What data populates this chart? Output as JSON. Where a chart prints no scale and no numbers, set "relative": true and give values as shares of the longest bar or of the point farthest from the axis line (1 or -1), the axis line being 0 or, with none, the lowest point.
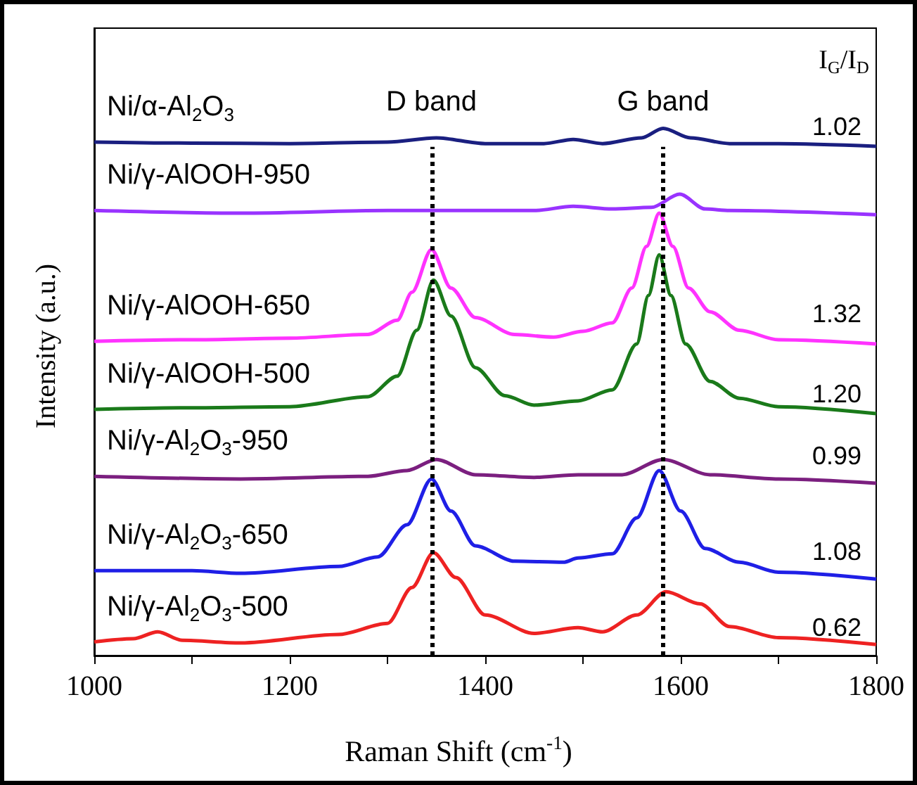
{
  "chart_data": {
    "type": "line",
    "relative": true,
    "xlabel": "Raman Shift (cm$^{-1}$)",
    "ylabel": "Intensity (a.u.)",
    "xlim": [
      1000,
      1800
    ],
    "xticks": [
      1000,
      {
        "value": 1100,
        "label": null
      },
      1200,
      {
        "value": 1300,
        "label": null
      },
      1400,
      {
        "value": 1500,
        "label": null
      },
      1600,
      {
        "value": 1700,
        "label": null
      },
      1800
    ],
    "series": [
      {
        "name": "Ni/α-Al$_{2}$O$_{3}$",
        "color": "#1a1f80",
        "x": [
          1000,
          1100,
          1200,
          1300,
          1350,
          1400,
          1460,
          1490,
          1520,
          1560,
          1582,
          1610,
          1650,
          1700,
          1800
        ],
        "values": [
          0.974,
          0.972,
          0.971,
          0.974,
          0.982,
          0.971,
          0.971,
          0.979,
          0.971,
          0.982,
          1.0,
          0.982,
          0.971,
          0.971,
          0.966
        ]
      },
      {
        "name": "Ni/γ-AlOOH-950",
        "color": "#9933ff",
        "x": [
          1000,
          1150,
          1300,
          1450,
          1490,
          1530,
          1570,
          1599,
          1625,
          1650,
          1800
        ],
        "values": [
          0.844,
          0.839,
          0.844,
          0.844,
          0.852,
          0.847,
          0.85,
          0.875,
          0.847,
          0.844,
          0.836
        ]
      },
      {
        "name": "Ni/γ-AlOOH-650",
        "color": "#ff33ff",
        "x": [
          1000,
          1100,
          1200,
          1280,
          1310,
          1325,
          1345,
          1365,
          1390,
          1430,
          1470,
          1500,
          1530,
          1550,
          1565,
          1578,
          1592,
          1608,
          1630,
          1660,
          1700,
          1800
        ],
        "values": [
          0.596,
          0.599,
          0.602,
          0.609,
          0.636,
          0.689,
          0.77,
          0.697,
          0.641,
          0.609,
          0.604,
          0.615,
          0.631,
          0.697,
          0.776,
          0.839,
          0.776,
          0.697,
          0.652,
          0.617,
          0.599,
          0.591
        ]
      },
      {
        "name": "Ni/γ-AlOOH-500",
        "color": "#1a7a1a",
        "x": [
          1000,
          1100,
          1200,
          1280,
          1310,
          1330,
          1347,
          1365,
          1390,
          1420,
          1450,
          1495,
          1530,
          1555,
          1567,
          1578,
          1590,
          1605,
          1630,
          1660,
          1700,
          1800
        ],
        "values": [
          0.467,
          0.47,
          0.472,
          0.491,
          0.53,
          0.617,
          0.712,
          0.644,
          0.546,
          0.493,
          0.475,
          0.483,
          0.504,
          0.591,
          0.683,
          0.76,
          0.683,
          0.591,
          0.52,
          0.488,
          0.472,
          0.459
        ]
      },
      {
        "name": "Ni/γ-Al$_{2}$O$_{3}$-950",
        "color": "#7b1f7f",
        "x": [
          1000,
          1150,
          1280,
          1320,
          1350,
          1390,
          1450,
          1495,
          1540,
          1582,
          1630,
          1700,
          1800
        ],
        "values": [
          0.34,
          0.335,
          0.34,
          0.351,
          0.372,
          0.343,
          0.338,
          0.343,
          0.343,
          0.372,
          0.343,
          0.335,
          0.327
        ]
      },
      {
        "name": "Ni/γ-Al$_{2}$O$_{3}$-650",
        "color": "#1f1fe6",
        "x": [
          1000,
          1100,
          1150,
          1250,
          1290,
          1320,
          1345,
          1365,
          1390,
          1430,
          1480,
          1495,
          1530,
          1555,
          1578,
          1600,
          1625,
          1660,
          1700,
          1800
        ],
        "values": [
          0.161,
          0.161,
          0.156,
          0.169,
          0.187,
          0.248,
          0.335,
          0.274,
          0.208,
          0.179,
          0.177,
          0.185,
          0.193,
          0.261,
          0.351,
          0.274,
          0.203,
          0.177,
          0.158,
          0.145
        ]
      },
      {
        "name": "Ni/γ-Al$_{2}$O$_{3}$-500",
        "color": "#ee2222",
        "x": [
          1000,
          1040,
          1065,
          1090,
          1150,
          1250,
          1300,
          1325,
          1347,
          1370,
          1400,
          1450,
          1495,
          1520,
          1555,
          1585,
          1620,
          1650,
          1700,
          1800
        ],
        "values": [
          0.026,
          0.032,
          0.045,
          0.029,
          0.024,
          0.04,
          0.061,
          0.129,
          0.195,
          0.148,
          0.077,
          0.042,
          0.053,
          0.045,
          0.077,
          0.121,
          0.098,
          0.055,
          0.034,
          0.021
        ]
      }
    ],
    "ref_lines": [
      {
        "axis": "x",
        "value": 1345,
        "label": "D band",
        "line_style": "dotted",
        "color": "#000000"
      },
      {
        "axis": "x",
        "value": 1582,
        "label": "G band",
        "line_style": "dotted",
        "color": "#000000"
      }
    ],
    "annotations": [
      "I$_{G}$/I$_{D}$",
      "1.02",
      "1.32",
      "1.20",
      "0.99",
      "1.08",
      "0.62"
    ]
  }
}
